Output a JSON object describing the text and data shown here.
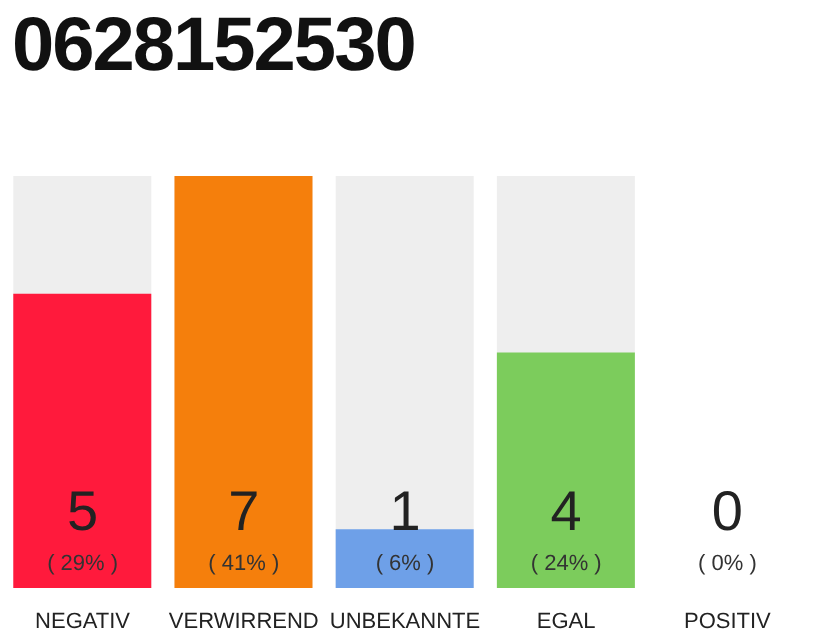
{
  "chart_data": {
    "type": "bar",
    "title": "0628152530",
    "categories": [
      "NEGATIV",
      "VERWIRREND",
      "UNBEKANNTE",
      "EGAL",
      "POSITIV"
    ],
    "values": [
      5,
      7,
      1,
      4,
      0
    ],
    "colors": [
      "#ff1a3c",
      "#f57f0c",
      "#6ea0e8",
      "#7ccc5c",
      "#aaaaaa"
    ],
    "value_labels": [
      "5\n( 29% )",
      "7\n( 41% )",
      "1\n( 6% )",
      "4\n( 24% )",
      "0\n( 0% )"
    ],
    "grid": false,
    "legend": false
  }
}
